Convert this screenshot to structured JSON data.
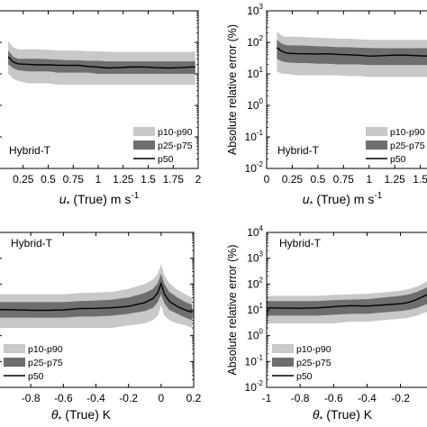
{
  "colors": {
    "p10_p90": "#c8c8c8",
    "p25_p75": "#6e6e6e",
    "p50": "#000000",
    "axis": "#000000"
  },
  "chart_data": [
    {
      "type": "area",
      "panel": "top-left",
      "annotation": "Hybrid-T",
      "xlabel_sym": "u",
      "xlabel_sub": "*",
      "xlabel_rest": " (True) m s",
      "xlabel_sup": "-1",
      "ylabel": "",
      "xlim": [
        0.0,
        2.0
      ],
      "ylim_log": [
        -2,
        3
      ],
      "xticks": [
        0.25,
        0.5,
        0.75,
        1.0,
        1.25,
        1.5,
        1.75,
        2.0
      ],
      "xtick_labels": [
        "0.25",
        "0.5",
        "0.75",
        "1",
        "1.25",
        "1.5",
        "1.75",
        "2"
      ],
      "yticks": [],
      "legend": {
        "position": "lower-right",
        "entries": [
          "p10-p90",
          "p25-p75",
          "p50"
        ]
      },
      "x": [
        0.1,
        0.15,
        0.2,
        0.3,
        0.4,
        0.5,
        0.6,
        0.7,
        0.8,
        0.9,
        1.0,
        1.1,
        1.2,
        1.3,
        1.4,
        1.5,
        1.6,
        1.7,
        1.8,
        1.9,
        1.97
      ],
      "p10": [
        10,
        7,
        6,
        5,
        5,
        5,
        4.5,
        4.5,
        4.5,
        4.5,
        4.5,
        4.5,
        4.5,
        4.5,
        4.5,
        4.5,
        4.5,
        4.5,
        4.5,
        4.5,
        4.5
      ],
      "p25": [
        20,
        15,
        13,
        12,
        12,
        12,
        11,
        11,
        11,
        11,
        10,
        10,
        10,
        10,
        10,
        10,
        10,
        10,
        10,
        10,
        10
      ],
      "p50": [
        35,
        23,
        20,
        20,
        20,
        20,
        19,
        18,
        18,
        17,
        17,
        16,
        16,
        16,
        16,
        16,
        16,
        16,
        16,
        16,
        16
      ],
      "p75": [
        55,
        35,
        30,
        30,
        30,
        29,
        28,
        27,
        27,
        26,
        26,
        25,
        25,
        25,
        25,
        25,
        25,
        25,
        25,
        25,
        25
      ],
      "p90": [
        110,
        70,
        60,
        60,
        60,
        58,
        55,
        55,
        55,
        53,
        52,
        50,
        50,
        50,
        50,
        50,
        50,
        50,
        50,
        50,
        50
      ]
    },
    {
      "type": "area",
      "panel": "top-right",
      "annotation": "Hybrid-T",
      "xlabel_sym": "u",
      "xlabel_sub": "*",
      "xlabel_rest": " (True) m s",
      "xlabel_sup": "-1",
      "ylabel": "Absolute relative error (%)",
      "xlim": [
        0.0,
        1.6
      ],
      "ylim_log": [
        -2,
        3
      ],
      "xticks": [
        0.0,
        0.25,
        0.5,
        0.75,
        1.0,
        1.25,
        1.5
      ],
      "xtick_labels": [
        "0",
        "0.25",
        "0.5",
        "0.75",
        "1",
        "1.25",
        "1.5"
      ],
      "yticks": [
        -2,
        -1,
        0,
        1,
        2,
        3
      ],
      "legend": {
        "position": "lower-right",
        "entries": [
          "p10-p90",
          "p25-p75",
          "p50"
        ]
      },
      "x": [
        0.1,
        0.15,
        0.2,
        0.3,
        0.4,
        0.5,
        0.6,
        0.7,
        0.8,
        0.9,
        1.0,
        1.1,
        1.2,
        1.3,
        1.4,
        1.5,
        1.6
      ],
      "p10": [
        12,
        10,
        10,
        9,
        9,
        9,
        9,
        9,
        8.5,
        8.5,
        8,
        8,
        8,
        8,
        8,
        8,
        8
      ],
      "p25": [
        30,
        25,
        23,
        22,
        22,
        21,
        21,
        20,
        20,
        20,
        19,
        19,
        19,
        19,
        19,
        19,
        19
      ],
      "p50": [
        65,
        50,
        45,
        45,
        45,
        43,
        42,
        40,
        40,
        40,
        38,
        38,
        38,
        38,
        38,
        38,
        38
      ],
      "p75": [
        120,
        90,
        80,
        80,
        78,
        75,
        73,
        70,
        70,
        68,
        66,
        65,
        65,
        65,
        65,
        65,
        65
      ],
      "p90": [
        220,
        160,
        150,
        150,
        145,
        140,
        135,
        130,
        130,
        125,
        120,
        120,
        120,
        120,
        120,
        120,
        120
      ]
    },
    {
      "type": "area",
      "panel": "bottom-left",
      "annotation": "Hybrid-T",
      "xlabel_sym": "θ",
      "xlabel_sub": "*",
      "xlabel_rest": " (True) K",
      "xlabel_sup": "",
      "ylabel": "",
      "xlim": [
        -1.0,
        0.2
      ],
      "ylim_log": [
        -2,
        4
      ],
      "xticks": [
        -0.8,
        -0.6,
        -0.4,
        -0.2,
        0.0,
        0.2
      ],
      "xtick_labels": [
        "-0.8",
        "-0.6",
        "-0.4",
        "-0.2",
        "0",
        "0.2"
      ],
      "yticks": [],
      "legend": {
        "position": "lower-left",
        "entries": [
          "p10-p90",
          "p25-p75",
          "p50"
        ]
      },
      "x": [
        -1.0,
        -0.9,
        -0.8,
        -0.7,
        -0.6,
        -0.5,
        -0.4,
        -0.3,
        -0.2,
        -0.1,
        -0.05,
        -0.02,
        0.0,
        0.02,
        0.05,
        0.1,
        0.15,
        0.19
      ],
      "p10": [
        2,
        2,
        2,
        2,
        2,
        2,
        2,
        2,
        2.5,
        3,
        4,
        6,
        15,
        6,
        4,
        3,
        2.5,
        2
      ],
      "p25": [
        5,
        5,
        5,
        5,
        5,
        5.5,
        5.5,
        6,
        7,
        9,
        12,
        20,
        40,
        18,
        10,
        7,
        5,
        4
      ],
      "p50": [
        10,
        10,
        10,
        10,
        10,
        11,
        11,
        12,
        14,
        20,
        28,
        45,
        100,
        40,
        22,
        14,
        10,
        8
      ],
      "p75": [
        20,
        20,
        20,
        20,
        20,
        22,
        23,
        25,
        30,
        45,
        65,
        110,
        250,
        100,
        50,
        30,
        20,
        16
      ],
      "p90": [
        40,
        40,
        40,
        40,
        40,
        45,
        47,
        50,
        65,
        100,
        150,
        250,
        600,
        220,
        110,
        60,
        40,
        30
      ]
    },
    {
      "type": "area",
      "panel": "bottom-right",
      "annotation": "Hybrid-T",
      "xlabel_sym": "θ",
      "xlabel_sub": "*",
      "xlabel_rest": " (True) K",
      "xlabel_sup": "",
      "ylabel": "Absolute relative error (%)",
      "xlim": [
        -1.0,
        -0.02
      ],
      "ylim_log": [
        -2,
        4
      ],
      "xticks": [
        -1.0,
        -0.8,
        -0.6,
        -0.4,
        -0.2
      ],
      "xtick_labels": [
        "-1",
        "-0.8",
        "-0.6",
        "-0.4",
        "-0.2"
      ],
      "yticks": [
        -2,
        -1,
        0,
        1,
        2,
        3,
        4
      ],
      "legend": {
        "position": "lower-left",
        "entries": [
          "p10-p90",
          "p25-p75",
          "p50"
        ]
      },
      "x": [
        -1.0,
        -0.9,
        -0.8,
        -0.7,
        -0.6,
        -0.5,
        -0.4,
        -0.3,
        -0.2,
        -0.15,
        -0.1,
        -0.05,
        -0.02
      ],
      "p10": [
        3,
        3,
        3,
        3,
        3,
        3.5,
        3.5,
        4,
        4.5,
        5,
        6,
        8,
        10
      ],
      "p25": [
        6,
        6,
        6,
        6,
        6.5,
        7,
        7,
        8,
        9,
        10,
        12,
        16,
        20
      ],
      "p50": [
        12,
        12,
        12,
        12,
        13,
        14,
        14,
        16,
        18,
        20,
        25,
        35,
        45
      ],
      "p75": [
        22,
        22,
        22,
        22,
        24,
        25,
        26,
        30,
        35,
        40,
        50,
        70,
        90
      ],
      "p90": [
        35,
        35,
        35,
        35,
        38,
        40,
        42,
        48,
        55,
        65,
        80,
        120,
        150
      ]
    }
  ]
}
